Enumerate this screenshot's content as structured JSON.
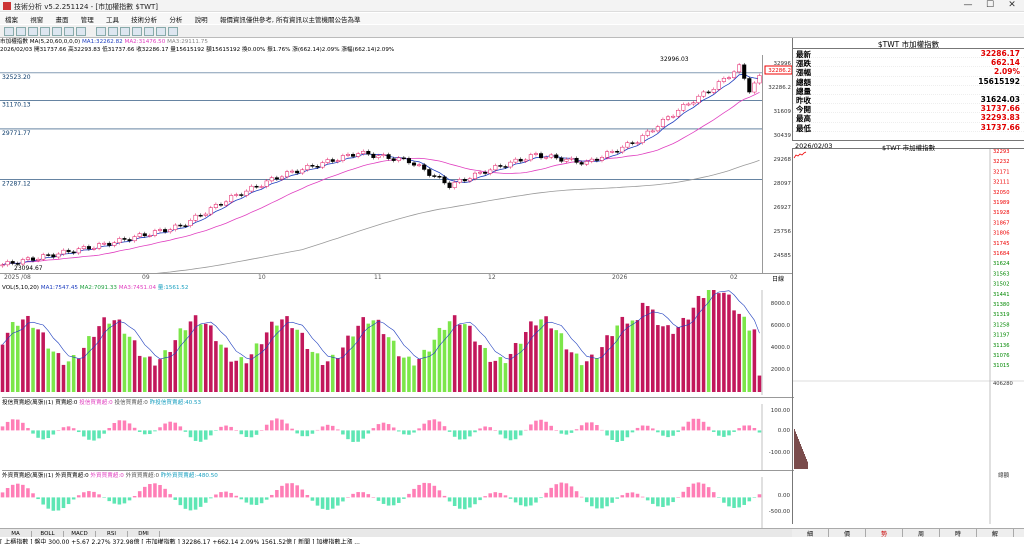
{
  "window": {
    "title": "技術分析 v5.2.251124 - [市加權指數 $TWT]",
    "controls": [
      "—",
      "☐",
      "✕"
    ]
  },
  "menu": [
    "檔案",
    "視窗",
    "畫面",
    "管理",
    "工具",
    "技術分析",
    "分析",
    "說明",
    "報價資訊僅供參考, 所有資訊以主管機關公告為準"
  ],
  "toolbar_icons": [
    "file-icon",
    "plus-icon",
    "list-icon",
    "chart-icon",
    "bar-icon",
    "grid-icon",
    "window-icon",
    "layout-icon",
    "arrow-icon",
    "line-icon",
    "square-icon",
    "circle-icon",
    "settings-icon",
    "save-icon"
  ],
  "info": {
    "line1": {
      "name": "市加權指數",
      "ma_label": "MA(5,20,60,0,0,0)",
      "ma1": "MA1:32262.82",
      "ma2": "MA2:31476.50",
      "ma3": "MA3:29111.75"
    },
    "line2": "2026/02/03 開31737.66 高32293.83 低31737.66 收32286.17 量15615192 額15615192 換0.00% 振1.76% 漲(662.14)2.09% 漲幅(662.14)2.09%"
  },
  "colors": {
    "up": "#e0115f",
    "down": "#000000",
    "vol_up": "#c2185b",
    "vol_down": "#7ce64a",
    "ma5": "#1f3fbf",
    "ma20": "#e040c0",
    "ma60": "#999999",
    "positive_text": "#e00000",
    "negative_text": "#008800",
    "hist_pos": "#ff7eb6",
    "hist_neg": "#5ee6b4"
  },
  "main_axis": {
    "labels": [
      "32996",
      "32286.2",
      "31609",
      "30439",
      "29268",
      "28097",
      "26927",
      "25756",
      "24585"
    ],
    "hlines": [
      "32523.20",
      "31170.13",
      "29771.77",
      "27287.12"
    ],
    "peak_label": "32996.03",
    "trough_label": "23094.67",
    "current_tag": "32286.2"
  },
  "date_axis": [
    "2025 /08",
    "09",
    "10",
    "11",
    "12",
    "2026",
    "02"
  ],
  "date_axis_right": "日線",
  "volume_pane": {
    "title": "VOL(5,10,20)",
    "ma1": "MA1:7547.45",
    "ma2": "MA2:7091.33",
    "ma3": "MA3:7451.04",
    "vol": "量:1561.52",
    "ticks": [
      "8000.0",
      "6000.0",
      "4000.0",
      "2000.0"
    ]
  },
  "pane3": {
    "title": "投信買賣超(萬張)(1) 買賣超:0",
    "items": [
      "投信買賣超:0",
      "投信買賣超:0",
      "昨投信買賣超:40.53"
    ],
    "ticks": [
      "100.00",
      "0.00",
      "-100.00"
    ]
  },
  "pane4": {
    "title": "外資買賣超(萬張)(1) 外資買賣超:0",
    "items": [
      "外資買賣超:0",
      "外資買賣超:0",
      "昨外資買賣超:-480.50"
    ],
    "ticks": [
      "0.00",
      "-500.00"
    ]
  },
  "quote": {
    "header": "$TWT 市加權指數",
    "rows": [
      {
        "label": "最新",
        "value": "32286.17",
        "color": "pos"
      },
      {
        "label": "漲跌",
        "value": "662.14",
        "color": "pos"
      },
      {
        "label": "漲幅",
        "value": "2.09%",
        "color": "pos"
      },
      {
        "label": "總額",
        "value": "15615192",
        "color": ""
      },
      {
        "label": "總量",
        "value": "",
        "color": ""
      },
      {
        "label": "昨收",
        "value": "31624.03",
        "color": ""
      },
      {
        "label": "今開",
        "value": "31737.66",
        "color": "pos"
      },
      {
        "label": "最高",
        "value": "32293.83",
        "color": "pos"
      },
      {
        "label": "最低",
        "value": "31737.66",
        "color": "pos"
      }
    ]
  },
  "intraday": {
    "date": "2026/02/03",
    "name": "$TWT 市加權指數",
    "price_ticks": [
      "32293",
      "32232",
      "32171",
      "32111",
      "32050",
      "31989",
      "31928",
      "31867",
      "31806",
      "31745",
      "31684",
      "31624",
      "31563",
      "31502",
      "31441",
      "31380",
      "31319",
      "31258",
      "31197",
      "31136",
      "31076",
      "31015"
    ],
    "vol_tick": "406280",
    "bottom_label": "總額"
  },
  "right_tabs": [
    "細",
    "價",
    "勢",
    "周",
    "時",
    "解"
  ],
  "bottom_tabs": [
    "MA",
    "BOLL",
    "MACD",
    "RSI",
    "DMI"
  ],
  "ticker": "[ 上櫃指數 ] 盤中 300.00 +5.67 2.27% 372.98億   [ 市加權指數 ] 32286.17 +662.14 2.09% 1561.52億   [ 新聞 ] 加權指數上漲 ..."
}
